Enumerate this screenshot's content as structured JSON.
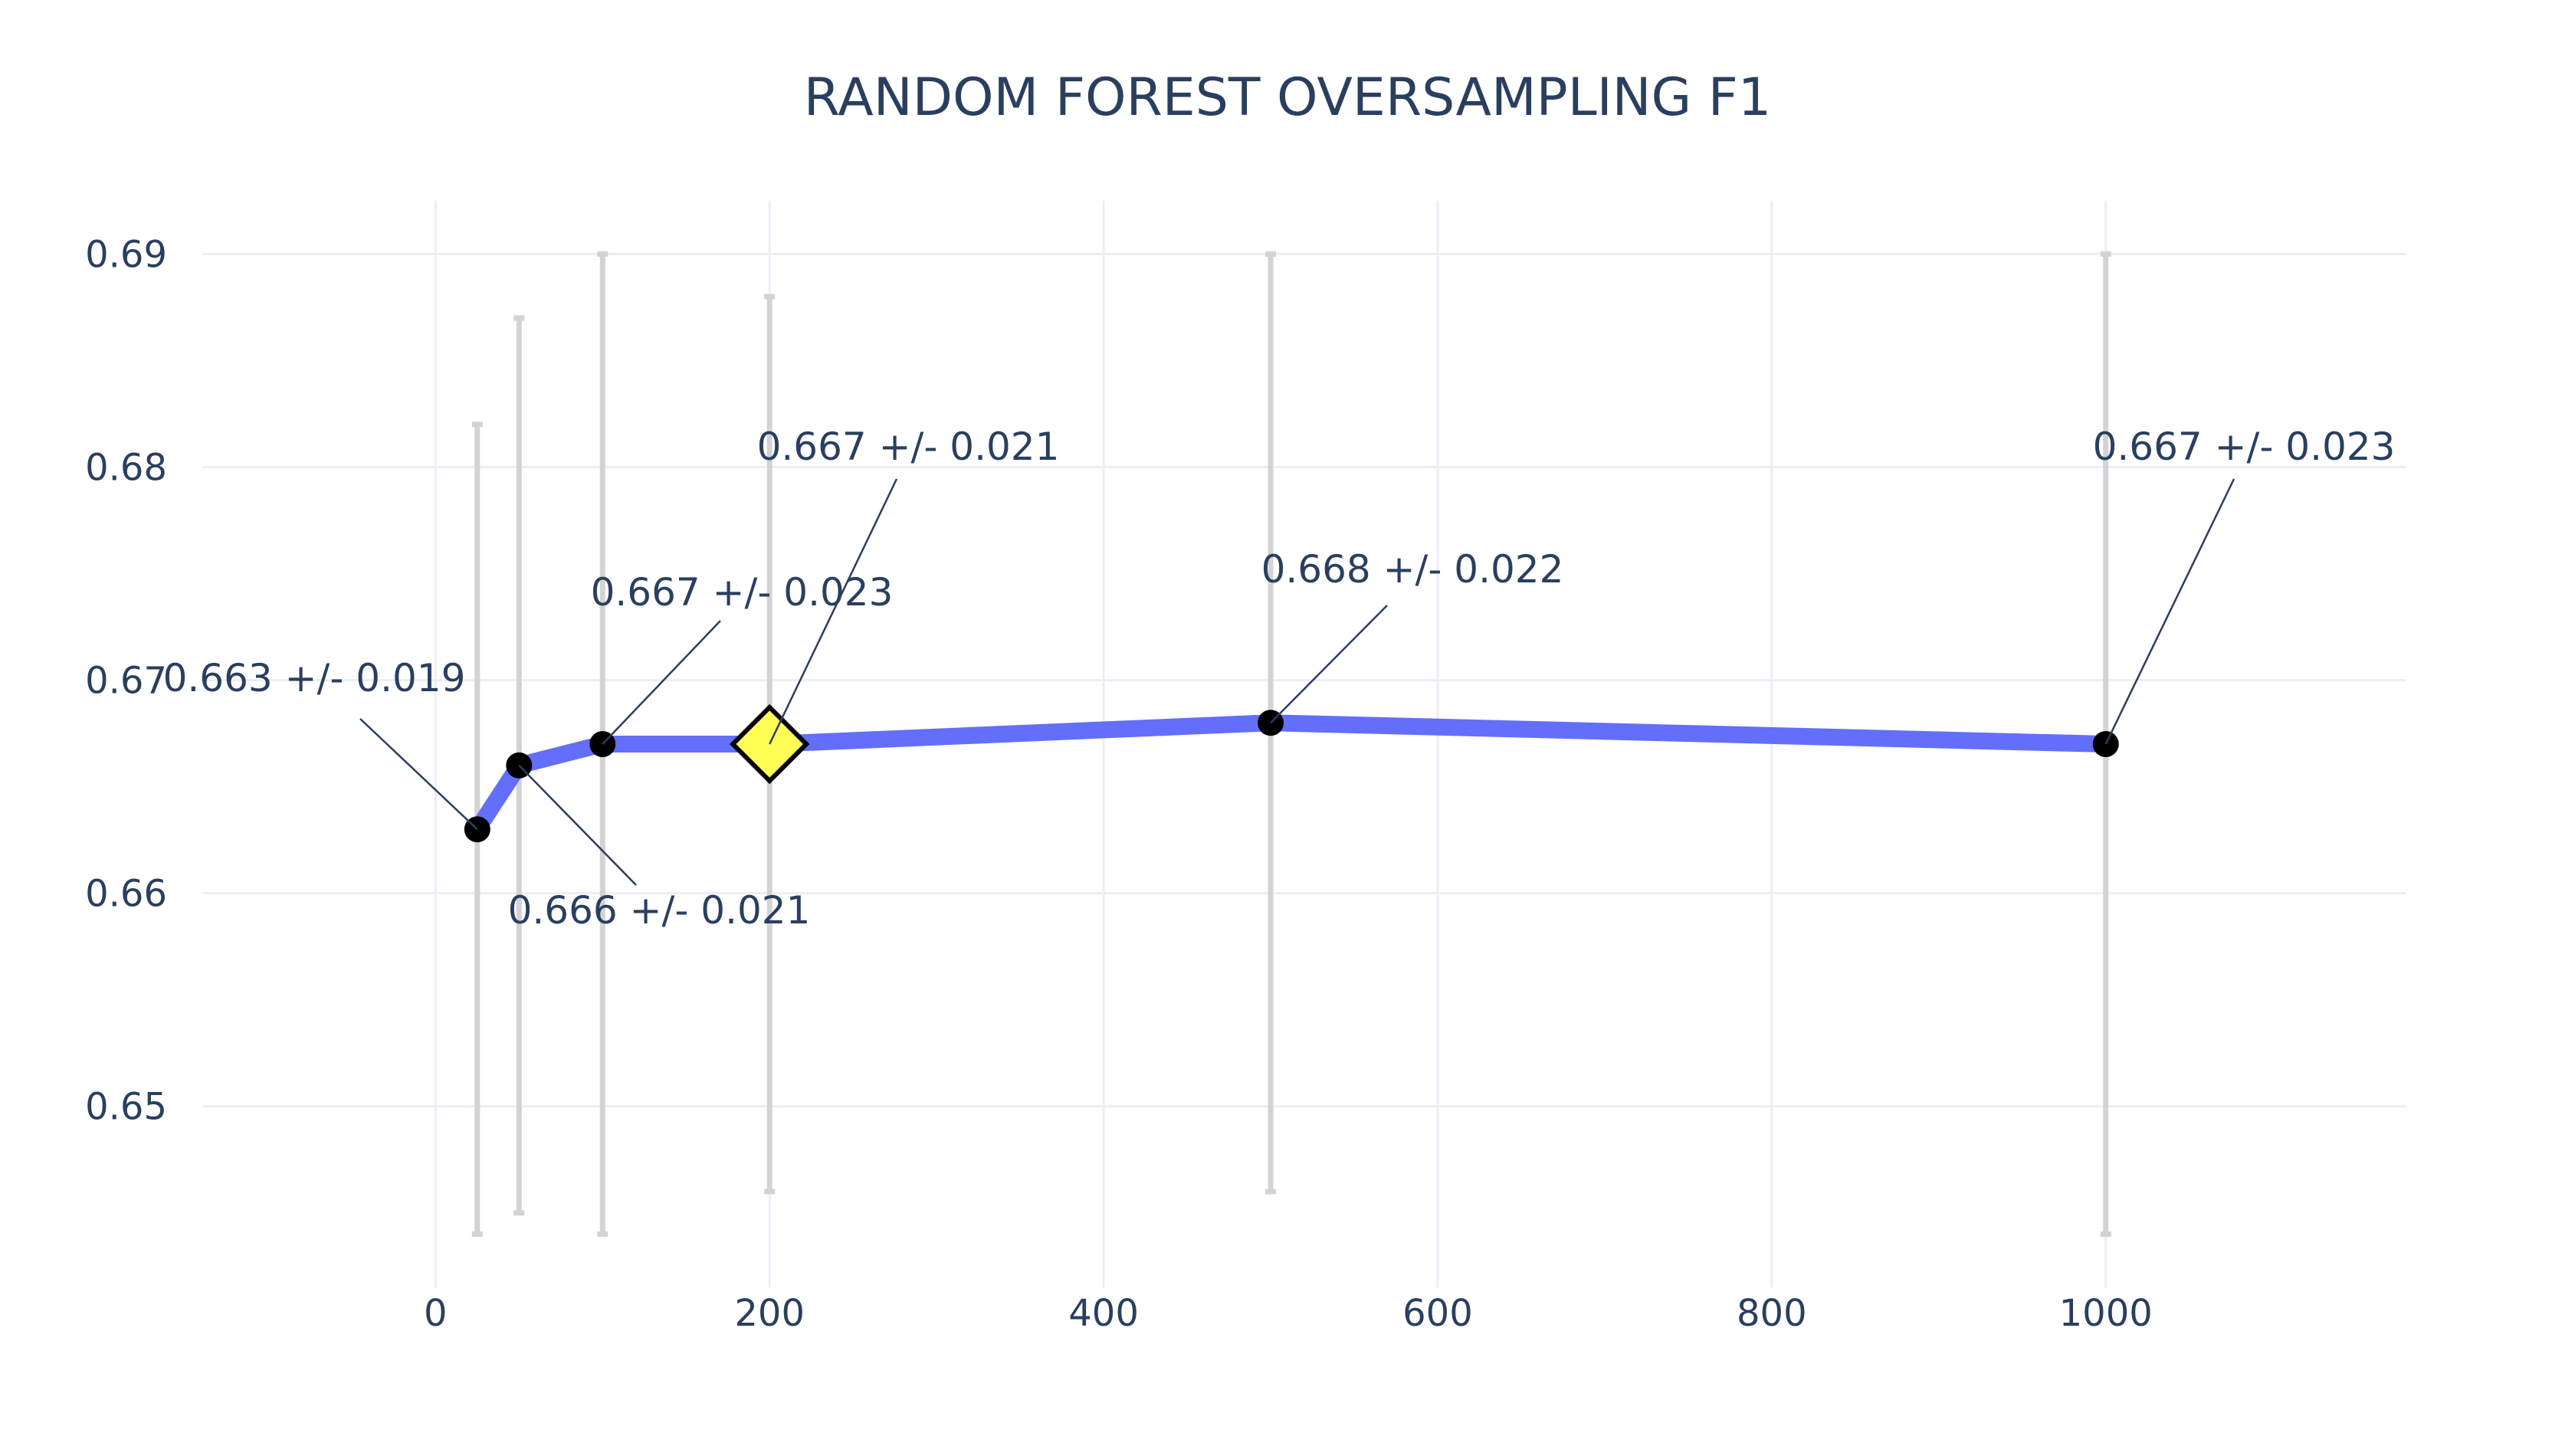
{
  "chart_data": {
    "type": "line",
    "title": "RANDOM FOREST OVERSAMPLING F1",
    "xlabel": "",
    "ylabel": "",
    "xlim": [
      -130,
      1180
    ],
    "ylim": [
      0.6415,
      0.6925
    ],
    "x_ticks": [
      "0",
      "200",
      "400",
      "600",
      "800",
      "1000"
    ],
    "x_tick_values": [
      0,
      200,
      400,
      600,
      800,
      1000
    ],
    "y_ticks": [
      "0.65",
      "0.66",
      "0.67",
      "0.68",
      "0.69"
    ],
    "y_tick_values": [
      0.65,
      0.66,
      0.67,
      0.68,
      0.69
    ],
    "grid": true,
    "series": [
      {
        "x": [
          25,
          50,
          100,
          200,
          500,
          1000
        ],
        "y": [
          0.663,
          0.666,
          0.667,
          0.667,
          0.668,
          0.667
        ],
        "error": [
          0.019,
          0.021,
          0.023,
          0.021,
          0.022,
          0.023
        ],
        "line_color": "#636efa",
        "marker_color": "#000000",
        "error_color": "#d3d3d3",
        "highlight_index": 3,
        "highlight_color": "#ffff55"
      }
    ],
    "annotations": [
      {
        "text": "0.663 +/- 0.019",
        "point_index": 0
      },
      {
        "text": "0.666 +/- 0.021",
        "point_index": 1
      },
      {
        "text": "0.667 +/- 0.023",
        "point_index": 2
      },
      {
        "text": "0.667 +/- 0.021",
        "point_index": 3
      },
      {
        "text": "0.668 +/- 0.022",
        "point_index": 4
      },
      {
        "text": "0.667 +/- 0.023",
        "point_index": 5
      }
    ]
  }
}
